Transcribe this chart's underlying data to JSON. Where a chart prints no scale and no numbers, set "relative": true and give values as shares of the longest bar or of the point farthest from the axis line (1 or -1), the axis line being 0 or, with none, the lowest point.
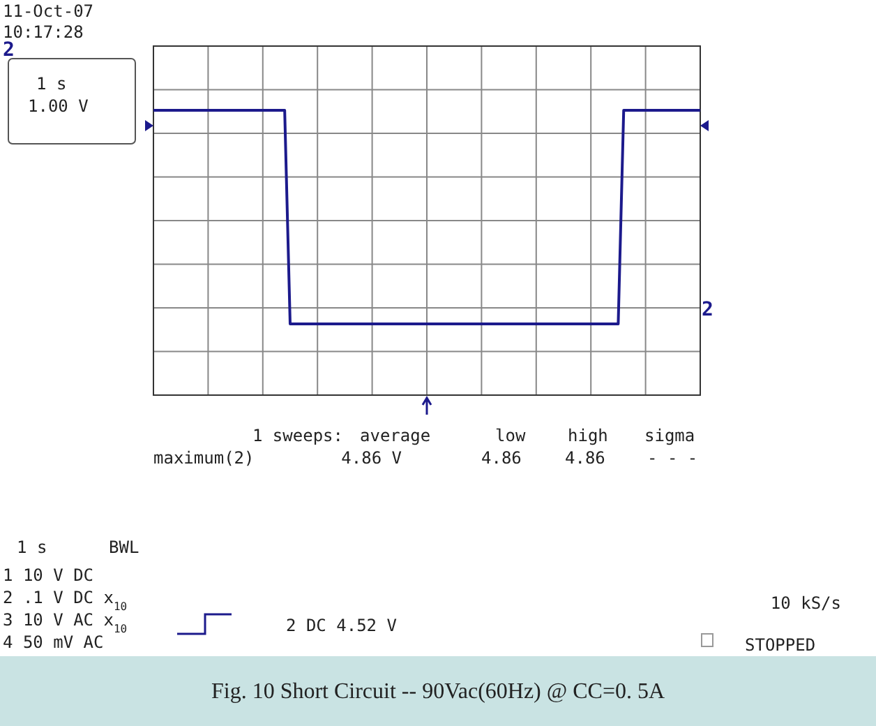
{
  "chart_data": {
    "type": "line",
    "relative": true,
    "title": "Fig. 10  Short Circuit  --  90Vac(60Hz) @ CC=0. 5A",
    "categories": [
      null,
      null,
      null,
      null,
      null,
      null,
      null,
      null,
      null,
      null,
      null,
      null,
      null,
      null,
      null,
      null,
      null,
      null,
      null,
      null,
      null,
      null,
      null,
      null,
      null,
      null,
      null,
      null,
      null,
      null,
      null,
      null,
      null,
      null,
      null,
      null,
      null,
      null,
      null,
      null,
      null,
      null,
      null,
      null,
      null,
      null,
      null,
      null,
      null,
      null,
      null,
      null,
      null,
      null,
      null,
      null,
      null,
      null,
      null,
      null,
      null,
      null,
      null,
      null,
      null,
      null,
      null,
      null,
      null,
      null,
      null,
      null,
      null,
      null,
      null,
      null,
      null,
      null,
      null,
      null,
      null,
      null,
      null,
      null,
      null,
      null,
      null,
      null,
      null,
      null,
      null,
      null,
      null,
      null,
      null,
      null,
      null,
      null,
      null,
      null,
      null
    ],
    "series": [
      {
        "color": "#1c1a8c",
        "values": [
          1,
          1,
          1,
          1,
          1,
          1,
          1,
          1,
          1,
          1,
          1,
          1,
          1,
          1,
          1,
          1,
          1,
          1,
          1,
          1,
          1,
          1,
          1,
          1,
          1,
          0.25,
          0.25,
          0.25,
          0.25,
          0.25,
          0.25,
          0.25,
          0.25,
          0.25,
          0.25,
          0.25,
          0.25,
          0.25,
          0.25,
          0.25,
          0.25,
          0.25,
          0.25,
          0.25,
          0.25,
          0.25,
          0.25,
          0.25,
          0.25,
          0.25,
          0.25,
          0.25,
          0.25,
          0.25,
          0.25,
          0.25,
          0.25,
          0.25,
          0.25,
          0.25,
          0.25,
          0.25,
          0.25,
          0.25,
          0.25,
          0.25,
          0.25,
          0.25,
          0.25,
          0.25,
          0.25,
          0.25,
          0.25,
          0.25,
          0.25,
          0.25,
          0.25,
          0.25,
          0.25,
          0.25,
          0.25,
          0.25,
          0.25,
          0.25,
          0.25,
          0.25,
          1,
          1,
          1,
          1,
          1,
          1,
          1,
          1,
          1,
          1,
          1,
          1,
          1,
          1,
          1
        ]
      }
    ],
    "grid": true,
    "tick_labels": false,
    "marker": "none",
    "line_style": "solid",
    "annotations": [
      "11-Oct-07",
      "10:17:28",
      "2",
      "1 s",
      "1.00 V",
      "1 sweeps:",
      "average",
      "low",
      "high",
      "sigma",
      "maximum(2)",
      "4.86 V",
      "4.86",
      "4.86",
      "- - -",
      "1   s",
      "BWL",
      "1 10   V   DC",
      "2  .1   V   DC x$_{10}$",
      "3 10   V   AC x$_{10}$",
      "4 50 mV   AC",
      "2 DC 4.52 V",
      "10 kS/s",
      "STOPPED",
      "2"
    ]
  }
}
